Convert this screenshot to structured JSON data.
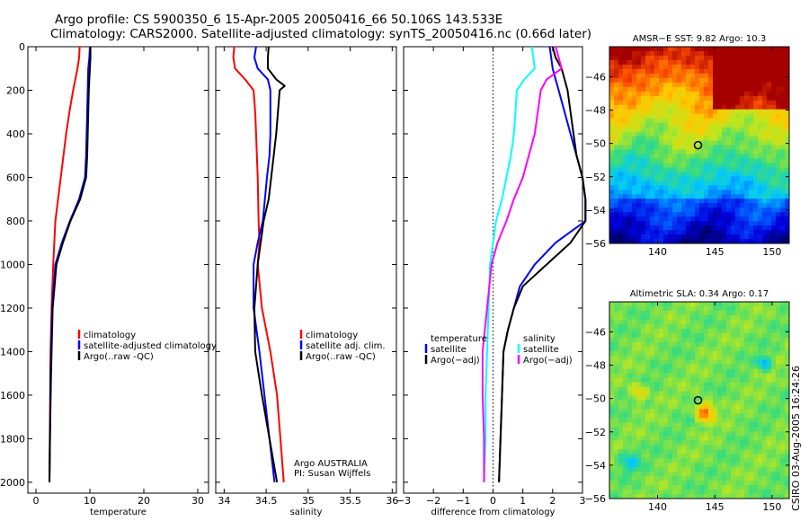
{
  "header": {
    "line1": "Argo profile: CS 5900350_6 15-Apr-2005 20050416_66 50.106S 143.533E",
    "line2": "Climatology: CARS2000. Satellite-adjusted climatology: synTS_20050416.nc (0.66d later)"
  },
  "side_text": "CSIRO 03-Aug-2005 16:24:26",
  "colors": {
    "climatology": "#ff0000",
    "satellite": "#0000ff",
    "argo": "#000000",
    "temperature_adj": "#00ffff",
    "salinity_adj": "#ff00ff"
  },
  "chart_data": [
    {
      "type": "line",
      "id": "temperature",
      "xlabel": "temperature",
      "ylabel": "",
      "xlim": [
        -1.5,
        32
      ],
      "ylim": [
        2050,
        0
      ],
      "xticks": [
        0,
        10,
        20,
        30
      ],
      "xtick_labels": [
        "0",
        "10",
        "20",
        "30"
      ],
      "yticks": [
        0,
        200,
        400,
        600,
        800,
        1000,
        1200,
        1400,
        1600,
        1800,
        2000
      ],
      "ytick_labels": [
        "0",
        "200",
        "400",
        "600",
        "800",
        "1000",
        "1200",
        "1400",
        "1600",
        "1800",
        "2000"
      ],
      "legend": [
        "climatology",
        "satellite-adjusted climatology",
        "Argo(..raw -QC)"
      ],
      "legend_position": "middle-right",
      "series": [
        {
          "name": "climatology",
          "color_key": "climatology",
          "x": [
            8.1,
            8.0,
            7.7,
            6.9,
            6.2,
            5.6,
            5.1,
            4.6,
            4.1,
            3.6,
            3.2,
            2.9,
            2.7,
            2.6,
            2.5
          ],
          "y": [
            0,
            50,
            100,
            200,
            300,
            400,
            500,
            600,
            700,
            800,
            1000,
            1200,
            1400,
            1700,
            2000
          ]
        },
        {
          "name": "satellite-adjusted climatology",
          "color_key": "satellite",
          "x": [
            10.0,
            9.9,
            9.7,
            9.6,
            9.5,
            9.4,
            9.3,
            9.1,
            8.0,
            6.3,
            4.8,
            3.6,
            3.0,
            2.7,
            2.6,
            2.5
          ],
          "y": [
            0,
            50,
            100,
            200,
            300,
            400,
            500,
            600,
            700,
            800,
            900,
            1000,
            1200,
            1500,
            1800,
            2000
          ]
        },
        {
          "name": "Argo(..raw -QC)",
          "color_key": "argo",
          "x": [
            10.1,
            10.1,
            10.0,
            9.8,
            9.7,
            9.6,
            9.5,
            9.3,
            8.2,
            6.4,
            5.0,
            3.8,
            3.1,
            2.8,
            2.6,
            2.5
          ],
          "y": [
            0,
            50,
            100,
            200,
            300,
            400,
            500,
            600,
            700,
            800,
            900,
            1000,
            1200,
            1500,
            1800,
            2000
          ]
        }
      ]
    },
    {
      "type": "line",
      "id": "salinity",
      "xlabel": "salinity",
      "ylabel": "",
      "xlim": [
        33.9,
        36.05
      ],
      "ylim": [
        2050,
        0
      ],
      "xticks": [
        34,
        34.5,
        35,
        35.5,
        36
      ],
      "xtick_labels": [
        "34",
        "34.5",
        "35",
        "35.5",
        "36"
      ],
      "legend": [
        "climatology",
        "satellite adj. clim.",
        "Argo(..raw -QC)"
      ],
      "legend_position": "middle-right",
      "annotations": [
        "Argo AUSTRALIA",
        "PI: Susan Wijffels"
      ],
      "series": [
        {
          "name": "climatology",
          "color_key": "climatology",
          "x": [
            34.12,
            34.11,
            34.13,
            34.25,
            34.35,
            34.37,
            34.38,
            34.39,
            34.4,
            34.41,
            34.42,
            34.4,
            34.45,
            34.55,
            34.63,
            34.67,
            34.71
          ],
          "y": [
            0,
            50,
            100,
            150,
            200,
            300,
            400,
            500,
            600,
            800,
            900,
            1000,
            1200,
            1400,
            1600,
            1800,
            2000
          ]
        },
        {
          "name": "satellite adj. clim.",
          "color_key": "satellite",
          "x": [
            34.38,
            34.36,
            34.4,
            34.52,
            34.55,
            34.55,
            34.55,
            34.54,
            34.51,
            34.46,
            34.4,
            34.35,
            34.35,
            34.42,
            34.51,
            34.6
          ],
          "y": [
            0,
            50,
            100,
            150,
            200,
            300,
            400,
            500,
            600,
            800,
            900,
            1000,
            1200,
            1400,
            1700,
            2000
          ]
        },
        {
          "name": "Argo(..raw -QC)",
          "color_key": "argo",
          "x": [
            34.53,
            34.52,
            34.52,
            34.62,
            34.72,
            34.66,
            34.64,
            34.62,
            34.59,
            34.53,
            34.47,
            34.4,
            34.36,
            34.37,
            34.45,
            34.54,
            34.63
          ],
          "y": [
            0,
            50,
            100,
            150,
            180,
            200,
            300,
            400,
            500,
            700,
            800,
            1000,
            1200,
            1400,
            1600,
            1800,
            2000
          ]
        }
      ]
    },
    {
      "type": "line",
      "id": "difference",
      "xlabel": "difference from climatology",
      "ylabel": "",
      "xlim": [
        -3,
        3
      ],
      "ylim": [
        2050,
        0
      ],
      "xticks": [
        -3,
        -2,
        -1,
        0,
        1,
        2,
        3
      ],
      "xtick_labels": [
        "−3",
        "−2",
        "−1",
        "0",
        "1",
        "2",
        "3"
      ],
      "reference_line_x": 0,
      "legend_left": [
        "temperature",
        "satellite",
        "Argo(−adj)"
      ],
      "legend_right": [
        "salinity",
        "satellite",
        "Argo(−adj)"
      ],
      "legend_position": "middle",
      "series": [
        {
          "name": "temperature satellite",
          "color_key": "satellite",
          "x": [
            1.9,
            1.95,
            2.0,
            2.1,
            2.2,
            2.4,
            2.6,
            2.8,
            3.0,
            3.1,
            3.1,
            2.1,
            1.4,
            0.9,
            0.7,
            0.5,
            0.35,
            0.3,
            0.25,
            0.2
          ],
          "y": [
            0,
            50,
            100,
            150,
            200,
            300,
            400,
            500,
            600,
            700,
            800,
            900,
            1000,
            1100,
            1200,
            1300,
            1400,
            1600,
            1800,
            2000
          ]
        },
        {
          "name": "temperature Argo(−adj)",
          "color_key": "argo",
          "x": [
            2.0,
            2.1,
            2.3,
            2.4,
            2.5,
            2.6,
            2.7,
            2.8,
            3.0,
            3.1,
            3.1,
            2.6,
            1.8,
            1.0,
            0.7,
            0.5,
            0.35,
            0.3,
            0.25,
            0.2
          ],
          "y": [
            0,
            50,
            100,
            150,
            200,
            300,
            400,
            500,
            600,
            700,
            800,
            900,
            1000,
            1100,
            1200,
            1300,
            1400,
            1600,
            1800,
            2000
          ]
        },
        {
          "name": "salinity satellite",
          "color_key": "temperature_adj",
          "x": [
            1.3,
            1.35,
            1.4,
            1.05,
            0.8,
            0.75,
            0.7,
            0.6,
            0.45,
            0.3,
            0.1,
            0.0,
            -0.1,
            -0.15,
            -0.2,
            -0.25,
            -0.25,
            -0.3
          ],
          "y": [
            0,
            50,
            100,
            150,
            200,
            300,
            400,
            500,
            600,
            700,
            800,
            900,
            1000,
            1200,
            1400,
            1600,
            1800,
            2000
          ]
        },
        {
          "name": "salinity Argo(−adj)",
          "color_key": "salinity_adj",
          "x": [
            2.1,
            2.2,
            2.3,
            1.8,
            1.6,
            1.5,
            1.4,
            1.2,
            1.0,
            0.7,
            0.45,
            0.15,
            -0.05,
            -0.2,
            -0.35,
            -0.35,
            -0.3,
            -0.3
          ],
          "y": [
            0,
            50,
            100,
            150,
            200,
            300,
            400,
            500,
            600,
            700,
            800,
            900,
            1000,
            1200,
            1400,
            1600,
            1800,
            2000
          ]
        }
      ]
    },
    {
      "type": "heatmap",
      "id": "sst_map",
      "title": "AMSR−E SST: 9.82 Argo: 10.3",
      "xlim": [
        135.8,
        151.5
      ],
      "ylim": [
        -56,
        -44.2
      ],
      "xticks": [
        140,
        145,
        150
      ],
      "xtick_labels": [
        "140",
        "145",
        "150"
      ],
      "yticks": [
        -46,
        -48,
        -50,
        -52,
        -54,
        -56
      ],
      "ytick_labels": [
        "−46",
        "−48",
        "−50",
        "−52",
        "−54",
        "−56"
      ],
      "marker": {
        "lon": 143.533,
        "lat": -50.106
      }
    },
    {
      "type": "heatmap",
      "id": "sla_map",
      "title": "Altimetric SLA: 0.34 Argo: 0.17",
      "xlim": [
        135.8,
        151.5
      ],
      "ylim": [
        -56,
        -44.2
      ],
      "xticks": [
        140,
        145,
        150
      ],
      "xtick_labels": [
        "140",
        "145",
        "150"
      ],
      "yticks": [
        -46,
        -48,
        -50,
        -52,
        -54,
        -56
      ],
      "ytick_labels": [
        "−46",
        "−48",
        "−50",
        "−52",
        "−54",
        "−56"
      ],
      "marker": {
        "lon": 143.533,
        "lat": -50.106
      }
    }
  ]
}
